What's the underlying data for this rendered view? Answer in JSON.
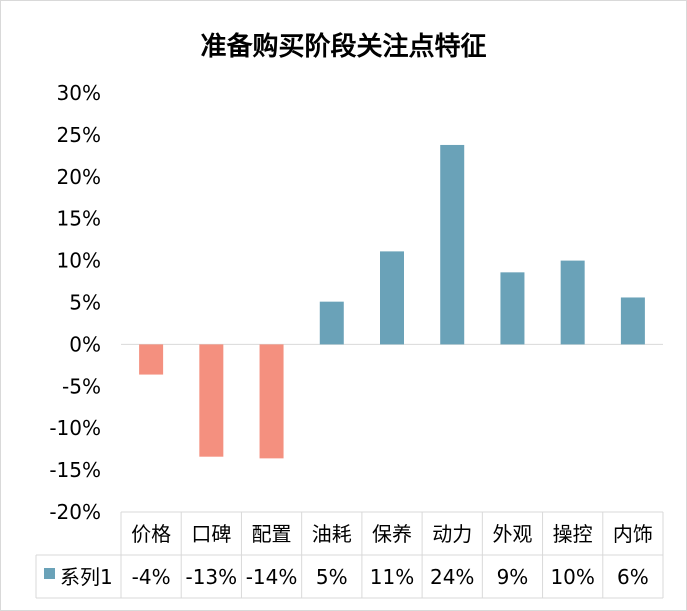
{
  "chart_data": {
    "type": "bar",
    "title": "准备购买阶段关注点特征",
    "categories": [
      "价格",
      "口碑",
      "配置",
      "油耗",
      "保养",
      "动力",
      "外观",
      "操控",
      "内饰"
    ],
    "series": [
      {
        "name": "系列1",
        "values": [
          -0.036,
          -0.134,
          -0.136,
          0.051,
          0.111,
          0.238,
          0.086,
          0.1,
          0.056
        ],
        "labels": [
          "-4%",
          "-13%",
          "-14%",
          "5%",
          "11%",
          "24%",
          "9%",
          "10%",
          "6%"
        ]
      }
    ],
    "ylim": [
      -0.2,
      0.3
    ],
    "yticks": [
      "30%",
      "25%",
      "20%",
      "15%",
      "10%",
      "5%",
      "0%",
      "-5%",
      "-10%",
      "-15%",
      "-20%"
    ],
    "ytick_values": [
      0.3,
      0.25,
      0.2,
      0.15,
      0.1,
      0.05,
      0.0,
      -0.05,
      -0.1,
      -0.15,
      -0.2
    ],
    "data_table": true,
    "colors": {
      "positive": "#6aa2b8",
      "negative": "#f4907f",
      "legend_key": "#6aa2b8",
      "grid": "#d9d9d9"
    },
    "xlabel": "",
    "ylabel": ""
  }
}
